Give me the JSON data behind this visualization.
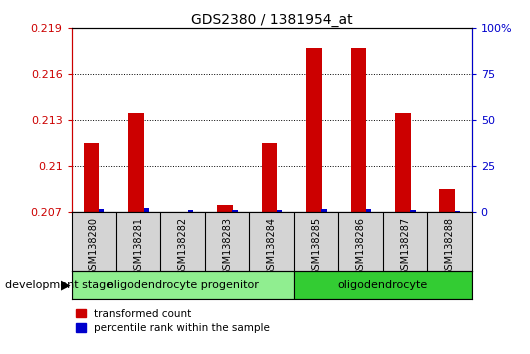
{
  "title": "GDS2380 / 1381954_at",
  "samples": [
    "GSM138280",
    "GSM138281",
    "GSM138282",
    "GSM138283",
    "GSM138284",
    "GSM138285",
    "GSM138286",
    "GSM138287",
    "GSM138288"
  ],
  "red_values": [
    0.2115,
    0.2135,
    0.207,
    0.20745,
    0.2115,
    0.2177,
    0.2177,
    0.2135,
    0.2085
  ],
  "blue_values": [
    2.0,
    2.5,
    1.5,
    1.5,
    1.5,
    2.0,
    2.0,
    1.5,
    1.0
  ],
  "ylim_left": [
    0.207,
    0.219
  ],
  "ylim_right": [
    0,
    100
  ],
  "yticks_left": [
    0.207,
    0.21,
    0.213,
    0.216,
    0.219
  ],
  "yticks_right": [
    0,
    25,
    50,
    75,
    100
  ],
  "red_color": "#cc0000",
  "blue_color": "#0000cc",
  "stage_groups": [
    {
      "label": "oligodendrocyte progenitor",
      "start": 0,
      "end": 5,
      "color": "#90ee90"
    },
    {
      "label": "oligodendrocyte",
      "start": 5,
      "end": 9,
      "color": "#33cc33"
    }
  ],
  "legend_red": "transformed count",
  "legend_blue": "percentile rank within the sample",
  "development_stage_label": "development stage",
  "left_axis_color": "#cc0000",
  "right_axis_color": "#0000cc"
}
